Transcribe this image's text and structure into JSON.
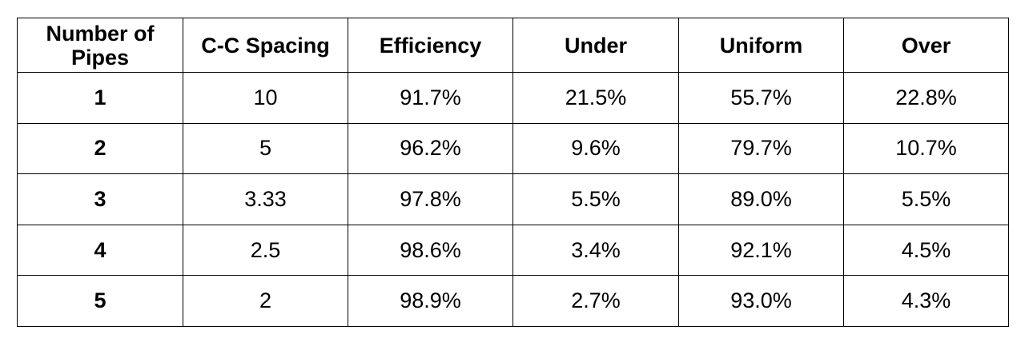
{
  "table": {
    "headers": [
      "Number of Pipes",
      "C-C Spacing",
      "Efficiency",
      "Under",
      "Uniform",
      "Over"
    ],
    "header_first_lines": [
      "Number of",
      "Pipes"
    ],
    "rows": [
      [
        "1",
        "10",
        "91.7%",
        "21.5%",
        "55.7%",
        "22.8%"
      ],
      [
        "2",
        "5",
        "96.2%",
        "9.6%",
        "79.7%",
        "10.7%"
      ],
      [
        "3",
        "3.33",
        "97.8%",
        "5.5%",
        "89.0%",
        "5.5%"
      ],
      [
        "4",
        "2.5",
        "98.6%",
        "3.4%",
        "92.1%",
        "4.5%"
      ],
      [
        "5",
        "2",
        "98.9%",
        "2.7%",
        "93.0%",
        "4.3%"
      ]
    ]
  }
}
